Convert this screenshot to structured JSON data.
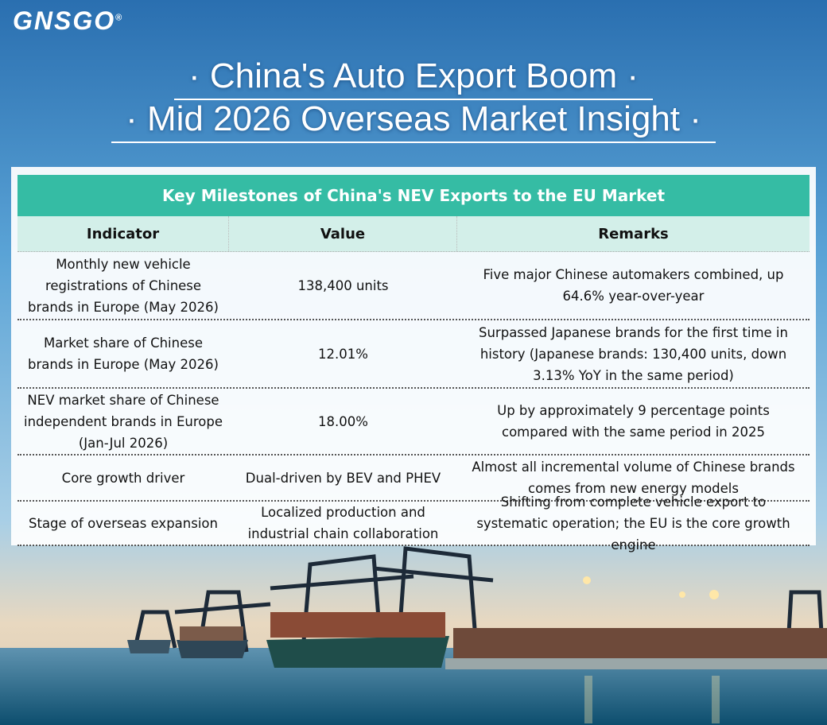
{
  "header": {
    "logo": "GNSGO",
    "logo_mark": "®",
    "title": [
      "· China's Auto Export Boom ·",
      "· Mid 2026 Overseas Market Insight ·"
    ]
  },
  "table": {
    "caption": "Key Milestones of China's NEV Exports to the EU Market",
    "columns": [
      "Indicator",
      "Value",
      "Remarks"
    ],
    "rows": [
      [
        "Monthly new vehicle registrations of Chinese brands in Europe (May 2026)",
        "138,400 units",
        "Five major Chinese automakers combined, up 64.6% year-over-year"
      ],
      [
        "Market share of Chinese brands in Europe (May 2026)",
        "12.01%",
        "Surpassed Japanese brands for the first time in history (Japanese brands: 130,400 units, down 3.13% YoY in the same period)"
      ],
      [
        "NEV market share of Chinese independent brands in Europe (Jan-Jul 2026)",
        "18.00%",
        "Up by approximately 9 percentage points compared with the same period in 2025"
      ],
      [
        "Core growth driver",
        "Dual-driven by BEV and PHEV",
        "Almost all incremental volume of Chinese brands comes from new energy models"
      ],
      [
        "Stage of overseas expansion",
        "Localized production and industrial chain collaboration",
        "Shifting from complete vehicle export to systematic operation; the EU is the core growth engine"
      ]
    ]
  }
}
